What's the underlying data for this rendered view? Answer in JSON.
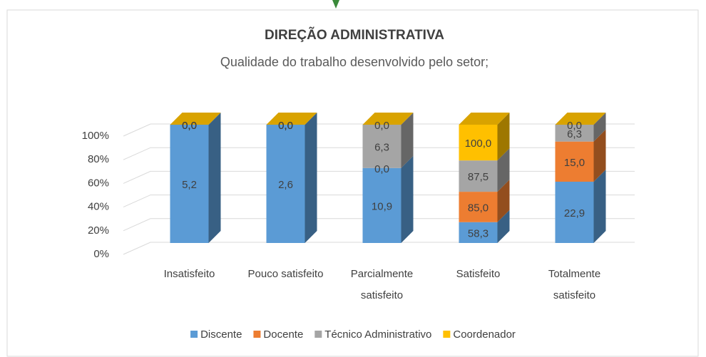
{
  "chart_data": {
    "type": "bar3d_stacked_percent",
    "title": "DIREÇÃO ADMINISTRATIVA",
    "subtitle": "Qualidade do trabalho desenvolvido pelo setor;",
    "categories": [
      "Insatisfeito",
      "Pouco satisfeito",
      "Parcialmente satisfeito",
      "Satisfeito",
      "Totalmente satisfeito"
    ],
    "series": [
      {
        "name": "Discente",
        "color": "#5b9bd5",
        "values": [
          5.2,
          2.6,
          10.9,
          58.3,
          22.9
        ],
        "value_labels": [
          "5,2",
          "2,6",
          "10,9",
          "58,3",
          "22,9"
        ]
      },
      {
        "name": "Docente",
        "color": "#ed7d31",
        "values": [
          0,
          0,
          0,
          85,
          15
        ],
        "value_labels": [
          "0,0",
          "0,0",
          "0,0",
          "85,0",
          "15,0"
        ]
      },
      {
        "name": "Técnico Administrativo",
        "color": "#a5a5a5",
        "values": [
          0,
          0,
          6.3,
          87.5,
          6.3
        ],
        "value_labels": [
          "0,0",
          "0,0",
          "6,3",
          "87,5",
          "6,3"
        ]
      },
      {
        "name": "Coordenador",
        "color": "#ffc000",
        "values": [
          0,
          0,
          0,
          100,
          0
        ],
        "value_labels": [
          "0,0",
          "0,0",
          "0,0",
          "100,0",
          "0,0"
        ]
      }
    ],
    "ylim": [
      0,
      100
    ],
    "yticks": [
      {
        "value": 0,
        "label": "0%"
      },
      {
        "value": 20,
        "label": "20%"
      },
      {
        "value": 40,
        "label": "40%"
      },
      {
        "value": 60,
        "label": "60%"
      },
      {
        "value": 80,
        "label": "80%"
      },
      {
        "value": 100,
        "label": "100%"
      }
    ],
    "grid": true,
    "legend": "bottom"
  }
}
